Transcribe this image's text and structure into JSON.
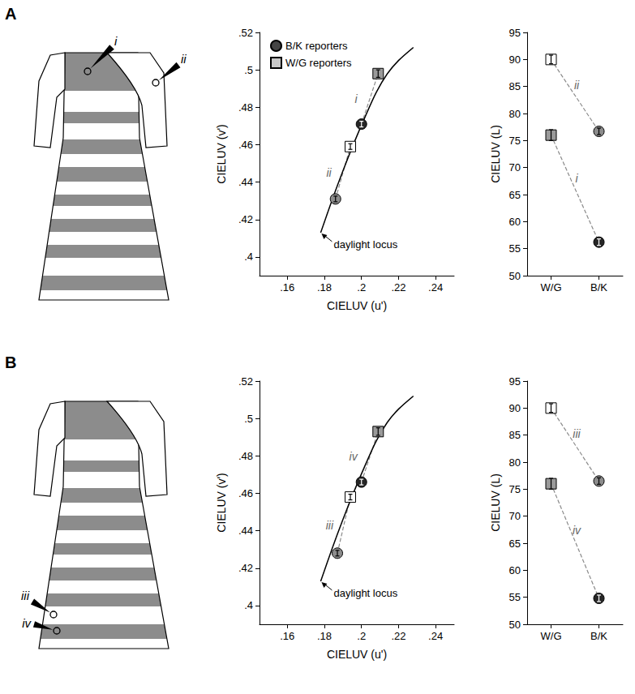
{
  "panels": [
    {
      "label": "A",
      "markers": [
        "i",
        "ii"
      ]
    },
    {
      "label": "B",
      "markers": [
        "iii",
        "iv"
      ]
    }
  ],
  "chart_data": [
    {
      "type": "scatter",
      "x_label": "CIELUV (u')",
      "y_label": "CIELUV (v')",
      "xlim": [
        0.145,
        0.25
      ],
      "xticks": [
        {
          "value": 0.16,
          "label": ".16"
        },
        {
          "value": 0.18,
          "label": ".18"
        },
        {
          "value": 0.2,
          "label": ".2"
        },
        {
          "value": 0.22,
          "label": ".22"
        },
        {
          "value": 0.24,
          "label": ".24"
        }
      ],
      "ylim": [
        0.39,
        0.52
      ],
      "yticks": [
        {
          "value": 0.4,
          "label": ".4"
        },
        {
          "value": 0.42,
          "label": ".42"
        },
        {
          "value": 0.44,
          "label": ".44"
        },
        {
          "value": 0.46,
          "label": ".46"
        },
        {
          "value": 0.48,
          "label": ".48"
        },
        {
          "value": 0.5,
          "label": ".5"
        },
        {
          "value": 0.52,
          "label": ".52"
        }
      ],
      "grid": false,
      "legend": "upper left",
      "series": [
        {
          "name": "B/K reporters",
          "marker": "circle",
          "color": "#444444",
          "x": [
            0.2,
            0.186
          ],
          "values": [
            0.471,
            0.431
          ],
          "errors": [
            0.0015,
            0.0015
          ],
          "point_labels": [
            "i",
            "ii"
          ],
          "colors": [
            "#262626",
            "#8c8c8c"
          ]
        },
        {
          "name": "W/G reporters",
          "marker": "square",
          "color": "#c8c8c8",
          "x": [
            0.209,
            0.194
          ],
          "values": [
            0.498,
            0.459
          ],
          "errors": [
            0.002,
            0.0015
          ],
          "point_labels": [
            "i",
            "ii"
          ],
          "colors": [
            "#9a9a9a",
            "#ffffff"
          ]
        },
        {
          "name": "daylight locus",
          "type": "line",
          "color": "#000000",
          "x": [
            0.178,
            0.184,
            0.19,
            0.196,
            0.202,
            0.208,
            0.214,
            0.22,
            0.228
          ],
          "values": [
            0.413,
            0.43,
            0.446,
            0.461,
            0.475,
            0.488,
            0.498,
            0.505,
            0.512
          ]
        }
      ]
    },
    {
      "type": "scatter",
      "y_label": "CIELUV (L)",
      "categories": [
        "W/G",
        "B/K"
      ],
      "ylim": [
        50,
        95
      ],
      "yticks": [
        50,
        55,
        60,
        65,
        70,
        75,
        80,
        85,
        90,
        95
      ],
      "grid": false,
      "series": [
        {
          "name": "W/G reporters",
          "marker": "square",
          "color": "#c8c8c8",
          "x": [
            "W/G",
            "W/G"
          ],
          "values": [
            90,
            76
          ],
          "errors": [
            0.8,
            1.0
          ],
          "point_labels": [
            "ii",
            "i"
          ],
          "colors": [
            "#ffffff",
            "#9a9a9a"
          ]
        },
        {
          "name": "B/K reporters",
          "marker": "circle",
          "color": "#444444",
          "x": [
            "B/K",
            "B/K"
          ],
          "values": [
            76.7,
            56.2
          ],
          "errors": [
            0.6,
            0.6
          ],
          "point_labels": [
            "ii",
            "i"
          ],
          "colors": [
            "#8c8c8c",
            "#262626"
          ]
        }
      ]
    },
    {
      "type": "scatter",
      "x_label": "CIELUV (u')",
      "y_label": "CIELUV (v')",
      "xlim": [
        0.145,
        0.25
      ],
      "xticks": [
        {
          "value": 0.16,
          "label": ".16"
        },
        {
          "value": 0.18,
          "label": ".18"
        },
        {
          "value": 0.2,
          "label": ".2"
        },
        {
          "value": 0.22,
          "label": ".22"
        },
        {
          "value": 0.24,
          "label": ".24"
        }
      ],
      "ylim": [
        0.39,
        0.52
      ],
      "yticks": [
        {
          "value": 0.4,
          "label": ".4"
        },
        {
          "value": 0.42,
          "label": ".42"
        },
        {
          "value": 0.44,
          "label": ".44"
        },
        {
          "value": 0.46,
          "label": ".46"
        },
        {
          "value": 0.48,
          "label": ".48"
        },
        {
          "value": 0.5,
          "label": ".5"
        },
        {
          "value": 0.52,
          "label": ".52"
        }
      ],
      "grid": false,
      "series": [
        {
          "name": "B/K reporters",
          "marker": "circle",
          "color": "#444444",
          "x": [
            0.2,
            0.187
          ],
          "values": [
            0.466,
            0.428
          ],
          "errors": [
            0.0015,
            0.0015
          ],
          "point_labels": [
            "iv",
            "iii"
          ],
          "colors": [
            "#262626",
            "#8c8c8c"
          ]
        },
        {
          "name": "W/G reporters",
          "marker": "square",
          "color": "#c8c8c8",
          "x": [
            0.209,
            0.194
          ],
          "values": [
            0.493,
            0.458
          ],
          "errors": [
            0.002,
            0.0015
          ],
          "point_labels": [
            "iv",
            "iii"
          ],
          "colors": [
            "#9a9a9a",
            "#ffffff"
          ]
        },
        {
          "name": "daylight locus",
          "type": "line",
          "color": "#000000",
          "x": [
            0.178,
            0.184,
            0.19,
            0.196,
            0.202,
            0.208,
            0.214,
            0.22,
            0.228
          ],
          "values": [
            0.413,
            0.43,
            0.446,
            0.461,
            0.475,
            0.488,
            0.498,
            0.505,
            0.512
          ]
        }
      ]
    },
    {
      "type": "scatter",
      "y_label": "CIELUV (L)",
      "categories": [
        "W/G",
        "B/K"
      ],
      "ylim": [
        50,
        95
      ],
      "yticks": [
        50,
        55,
        60,
        65,
        70,
        75,
        80,
        85,
        90,
        95
      ],
      "grid": false,
      "series": [
        {
          "name": "W/G reporters",
          "marker": "square",
          "color": "#c8c8c8",
          "x": [
            "W/G",
            "W/G"
          ],
          "values": [
            90,
            76
          ],
          "errors": [
            0.8,
            1.0
          ],
          "point_labels": [
            "iii",
            "iv"
          ],
          "colors": [
            "#ffffff",
            "#9a9a9a"
          ]
        },
        {
          "name": "B/K reporters",
          "marker": "circle",
          "color": "#444444",
          "x": [
            "B/K",
            "B/K"
          ],
          "values": [
            76.5,
            54.8
          ],
          "errors": [
            0.6,
            0.6
          ],
          "point_labels": [
            "iii",
            "iv"
          ],
          "colors": [
            "#8c8c8c",
            "#262626"
          ]
        }
      ]
    }
  ]
}
